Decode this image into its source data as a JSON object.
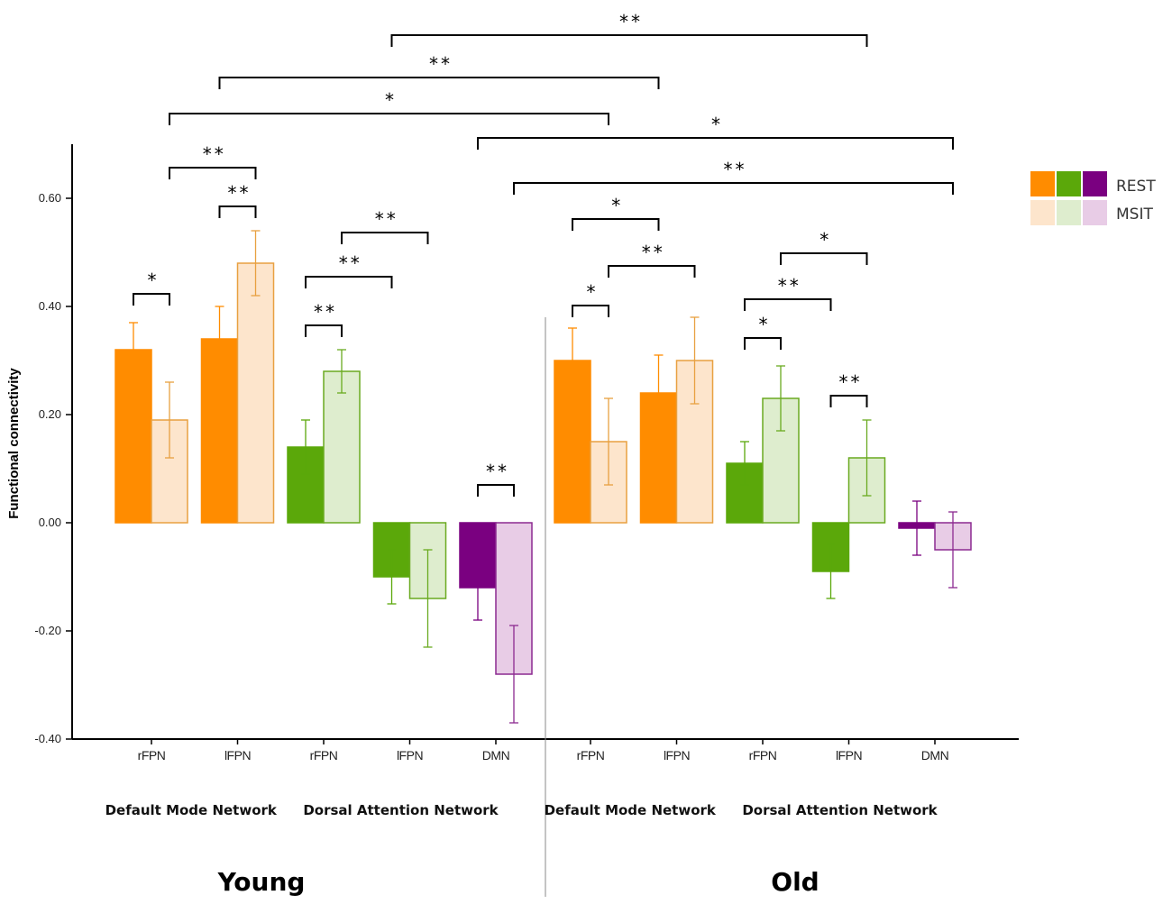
{
  "chart_data": {
    "type": "bar",
    "ylabel": "Functional connectivity",
    "ylim": [
      -0.4,
      0.7
    ],
    "yticks": [
      -0.4,
      -0.2,
      0.0,
      0.2,
      0.4,
      0.6
    ],
    "ytick_labels": [
      "-0.40",
      "-0.20",
      "0.00",
      "0.20",
      "0.40",
      "0.60"
    ],
    "legend": {
      "position": "top-right",
      "labels": [
        "REST",
        "MSIT"
      ]
    },
    "colors": {
      "DMN_like": {
        "rest": "#FF8C00",
        "msit": "#FDE5CC",
        "msit_edge": "#E8A040"
      },
      "DAN_like": {
        "rest": "#5BA80A",
        "msit": "#DEEDCE",
        "msit_edge": "#6AAA20"
      },
      "purple": {
        "rest": "#7A0080",
        "msit": "#E8CCE6",
        "msit_edge": "#8C2A90"
      }
    },
    "groups": [
      {
        "label": "Young",
        "networks": [
          {
            "label": "Default Mode Network",
            "categories": [
              "rFPN",
              "lFPN"
            ]
          },
          {
            "label": "Dorsal Attention Network",
            "categories": [
              "rFPN",
              "lFPN",
              "DMN"
            ]
          }
        ]
      },
      {
        "label": "Old",
        "networks": [
          {
            "label": "Default Mode Network",
            "categories": [
              "rFPN",
              "lFPN"
            ]
          },
          {
            "label": "Dorsal Attention Network",
            "categories": [
              "rFPN",
              "lFPN",
              "DMN"
            ]
          }
        ]
      }
    ],
    "bars": [
      {
        "group": "Young",
        "network": "Default Mode Network",
        "category": "rFPN",
        "color": "orange",
        "rest": 0.32,
        "rest_err": 0.05,
        "msit": 0.19,
        "msit_err": 0.07
      },
      {
        "group": "Young",
        "network": "Default Mode Network",
        "category": "lFPN",
        "color": "orange",
        "rest": 0.34,
        "rest_err": 0.06,
        "msit": 0.48,
        "msit_err": 0.06
      },
      {
        "group": "Young",
        "network": "Dorsal Attention Network",
        "category": "rFPN",
        "color": "green",
        "rest": 0.14,
        "rest_err": 0.05,
        "msit": 0.28,
        "msit_err": 0.04
      },
      {
        "group": "Young",
        "network": "Dorsal Attention Network",
        "category": "lFPN",
        "color": "green",
        "rest": -0.1,
        "rest_err": 0.05,
        "msit": -0.14,
        "msit_err": 0.09
      },
      {
        "group": "Young",
        "network": "Dorsal Attention Network",
        "category": "DMN",
        "color": "purple",
        "rest": -0.12,
        "rest_err": 0.06,
        "msit": -0.28,
        "msit_err": 0.09
      },
      {
        "group": "Old",
        "network": "Default Mode Network",
        "category": "rFPN",
        "color": "orange",
        "rest": 0.3,
        "rest_err": 0.06,
        "msit": 0.15,
        "msit_err": 0.08
      },
      {
        "group": "Old",
        "network": "Default Mode Network",
        "category": "lFPN",
        "color": "orange",
        "rest": 0.24,
        "rest_err": 0.07,
        "msit": 0.3,
        "msit_err": 0.08
      },
      {
        "group": "Old",
        "network": "Dorsal Attention Network",
        "category": "rFPN",
        "color": "green",
        "rest": 0.11,
        "rest_err": 0.04,
        "msit": 0.23,
        "msit_err": 0.06
      },
      {
        "group": "Old",
        "network": "Dorsal Attention Network",
        "category": "lFPN",
        "color": "green",
        "rest": -0.09,
        "rest_err": 0.05,
        "msit": 0.12,
        "msit_err": 0.07
      },
      {
        "group": "Old",
        "network": "Dorsal Attention Network",
        "category": "DMN",
        "color": "purple",
        "rest": -0.01,
        "rest_err": 0.05,
        "msit": -0.05,
        "msit_err": 0.07
      }
    ],
    "significance": [
      {
        "from_bar": 0,
        "from_cond": "rest",
        "to_bar": 0,
        "to_cond": "msit",
        "label": "*"
      },
      {
        "from_bar": 1,
        "from_cond": "rest",
        "to_bar": 1,
        "to_cond": "msit",
        "label": "**"
      },
      {
        "from_bar": 0,
        "from_cond": "msit",
        "to_bar": 1,
        "to_cond": "msit",
        "label": "**"
      },
      {
        "from_bar": 2,
        "from_cond": "rest",
        "to_bar": 2,
        "to_cond": "msit",
        "label": "**"
      },
      {
        "from_bar": 2,
        "from_cond": "rest",
        "to_bar": 3,
        "to_cond": "rest",
        "label": "**"
      },
      {
        "from_bar": 2,
        "from_cond": "msit",
        "to_bar": 3,
        "to_cond": "msit",
        "label": "**"
      },
      {
        "from_bar": 4,
        "from_cond": "rest",
        "to_bar": 4,
        "to_cond": "msit",
        "label": "**"
      },
      {
        "from_bar": 5,
        "from_cond": "rest",
        "to_bar": 5,
        "to_cond": "msit",
        "label": "*"
      },
      {
        "from_bar": 5,
        "from_cond": "rest",
        "to_bar": 6,
        "to_cond": "rest",
        "label": "*"
      },
      {
        "from_bar": 5,
        "from_cond": "msit",
        "to_bar": 6,
        "to_cond": "msit",
        "label": "**"
      },
      {
        "from_bar": 7,
        "from_cond": "rest",
        "to_bar": 7,
        "to_cond": "msit",
        "label": "*"
      },
      {
        "from_bar": 7,
        "from_cond": "rest",
        "to_bar": 8,
        "to_cond": "rest",
        "label": "**"
      },
      {
        "from_bar": 7,
        "from_cond": "msit",
        "to_bar": 8,
        "to_cond": "msit",
        "label": "*"
      },
      {
        "from_bar": 8,
        "from_cond": "rest",
        "to_bar": 8,
        "to_cond": "msit",
        "label": "**"
      },
      {
        "from_bar": 0,
        "from_cond": "msit",
        "to_bar": 5,
        "to_cond": "msit",
        "label": "*"
      },
      {
        "from_bar": 1,
        "from_cond": "rest",
        "to_bar": 6,
        "to_cond": "rest",
        "label": "**"
      },
      {
        "from_bar": 3,
        "from_cond": "rest",
        "to_bar": 8,
        "to_cond": "msit",
        "label": "**"
      },
      {
        "from_bar": 4,
        "from_cond": "rest",
        "to_bar": 9,
        "to_cond": "msit",
        "label": "*"
      },
      {
        "from_bar": 4,
        "from_cond": "msit",
        "to_bar": 9,
        "to_cond": "msit",
        "label": "**"
      }
    ]
  }
}
